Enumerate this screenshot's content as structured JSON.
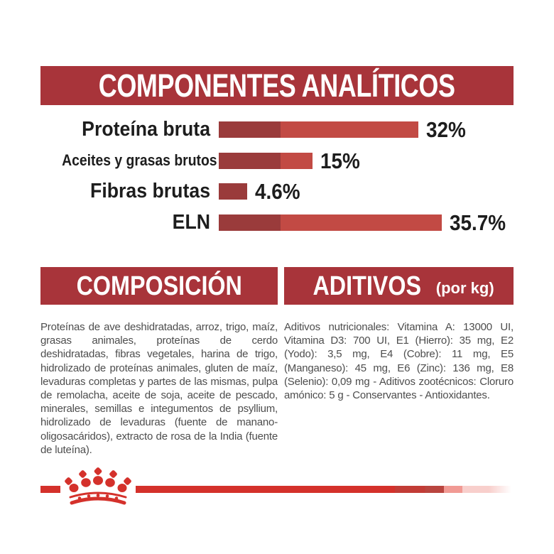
{
  "header": {
    "title": "COMPONENTES ANALÍTICOS"
  },
  "chart_data": {
    "type": "bar",
    "orientation": "horizontal",
    "unit": "%",
    "categories": [
      "Proteína bruta",
      "Aceites y grasas brutos",
      "Fibras brutas",
      "ELN"
    ],
    "values": [
      32,
      15,
      4.6,
      35.7
    ],
    "value_labels": [
      "32%",
      "15%",
      "4.6%",
      "35.7%"
    ],
    "xlim": [
      0,
      38
    ],
    "legend": "none",
    "grid": "off"
  },
  "composition": {
    "title": "COMPOSICIÓN",
    "body": "Proteínas de ave deshidratadas, arroz, trigo, maíz, grasas animales, proteínas de cerdo deshidratadas, fibras vegetales, harina de trigo, hidrolizado de proteínas animales, gluten de maíz, levaduras completas y partes de las mismas, pulpa de remolacha, aceite de soja, aceite de pescado, minerales, semillas e integumentos de psyllium, hidrolizado de levaduras (fuente de manano-oligosacáridos), extracto de rosa de la India (fuente de luteína)."
  },
  "additives": {
    "title": "ADITIVOS",
    "subtitle": "(por kg)",
    "body": "Aditivos nutricionales: Vitamina A: 13000 UI, Vitamina D3: 700 UI, E1 (Hierro): 35 mg, E2 (Yodo): 3,5 mg, E4 (Cobre): 11 mg, E5 (Manganeso): 45 mg, E6 (Zinc): 136 mg, E8 (Selenio): 0,09 mg - Aditivos zootécnicos: Cloruro amónico: 5 g - Conservantes - Antioxidantes."
  },
  "footer": {
    "logo": "royal-canin-crown"
  },
  "colors": {
    "banner_red": "#a8343a",
    "bar_light": "#c24a44",
    "bar_dark": "#9a3b3b",
    "accent_red": "#d4312b",
    "body_text": "#4d4d4d",
    "label_black": "#1d1d1d"
  }
}
